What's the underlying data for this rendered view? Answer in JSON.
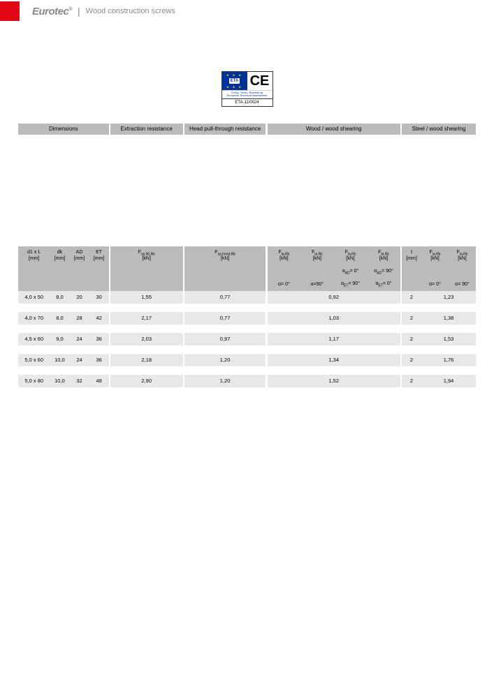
{
  "header": {
    "brand": "Eurotec",
    "subtitle": "Wood construction screws"
  },
  "cert": {
    "eta": "ETA",
    "caption1": "Europ. Techn. Bewertung",
    "caption2": "European Technical Assessment",
    "code": "ETA-11/0024",
    "ce": "CE"
  },
  "groups": [
    "Dimensions",
    "Extraction resistance",
    "Head pull-through resistance",
    "Wood / wood shearing",
    "Steel / wood shearing"
  ],
  "cols": [
    {
      "l1": "d1 x L",
      "l2": "[mm]"
    },
    {
      "l1": "dk",
      "l2": "[mm]"
    },
    {
      "l1": "AD",
      "l2": "[mm]"
    },
    {
      "l1": "ET",
      "l2": "[mm]"
    },
    {
      "l1": "F<sub>ax,90,Rk</sub>",
      "l2": "[kN]"
    },
    {
      "l1": "F<sub>ax,head,Rk</sub>",
      "l2": "[kN]"
    },
    {
      "l1": "F<sub>la,Rk</sub>",
      "l2": "[kN]"
    },
    {
      "l1": "F<sub>la,Rk</sub>",
      "l2": "[kN]"
    },
    {
      "l1": "F<sub>la,Rk</sub>",
      "l2": "[kN]"
    },
    {
      "l1": "F<sub>la,Rk</sub>",
      "l2": "[kN]"
    },
    {
      "l1": "t",
      "l2": "[mm]"
    },
    {
      "l1": "F<sub>la,Rk</sub>",
      "l2": "[kN]"
    },
    {
      "l1": "F<sub>la,Rk</sub>",
      "l2": "[kN]"
    }
  ],
  "sub1": [
    "",
    "",
    "",
    "",
    "",
    "",
    "",
    "",
    "α<sub>AD</sub>= 0°",
    "α<sub>AD</sub>= 90°",
    "",
    "",
    ""
  ],
  "sub2": [
    "",
    "",
    "",
    "",
    "",
    "",
    "α= 0°",
    "α=90°",
    "α<sub>ET</sub>= 90°",
    "α<sub>ET</sub>= 0°",
    "",
    "α= 0°",
    "α= 90°"
  ],
  "rows": [
    [
      "4,0 x 50",
      "8,0",
      "20",
      "30",
      "1,55",
      "0,77",
      "0,92",
      "",
      "",
      "",
      "2",
      "1,23",
      ""
    ],
    [
      "4,0 x 70",
      "8,0",
      "28",
      "42",
      "2,17",
      "0,77",
      "1,03",
      "",
      "",
      "",
      "2",
      "1,38",
      ""
    ],
    [
      "4,5 x 60",
      "9,0",
      "24",
      "36",
      "2,03",
      "0,97",
      "1,17",
      "",
      "",
      "",
      "2",
      "1,53",
      ""
    ],
    [
      "5,0 x 60",
      "10,0",
      "24",
      "36",
      "2,18",
      "1,20",
      "1,34",
      "",
      "",
      "",
      "2",
      "1,76",
      ""
    ],
    [
      "5,0 x 80",
      "10,0",
      "32",
      "48",
      "2,90",
      "1,20",
      "1,52",
      "",
      "",
      "",
      "2",
      "1,94",
      ""
    ]
  ],
  "widths": {
    "d1": 42,
    "dk": 26,
    "ad": 26,
    "et": 26,
    "ext": 96,
    "head": 108,
    "ww": 44,
    "t": 26,
    "sw": 36
  }
}
